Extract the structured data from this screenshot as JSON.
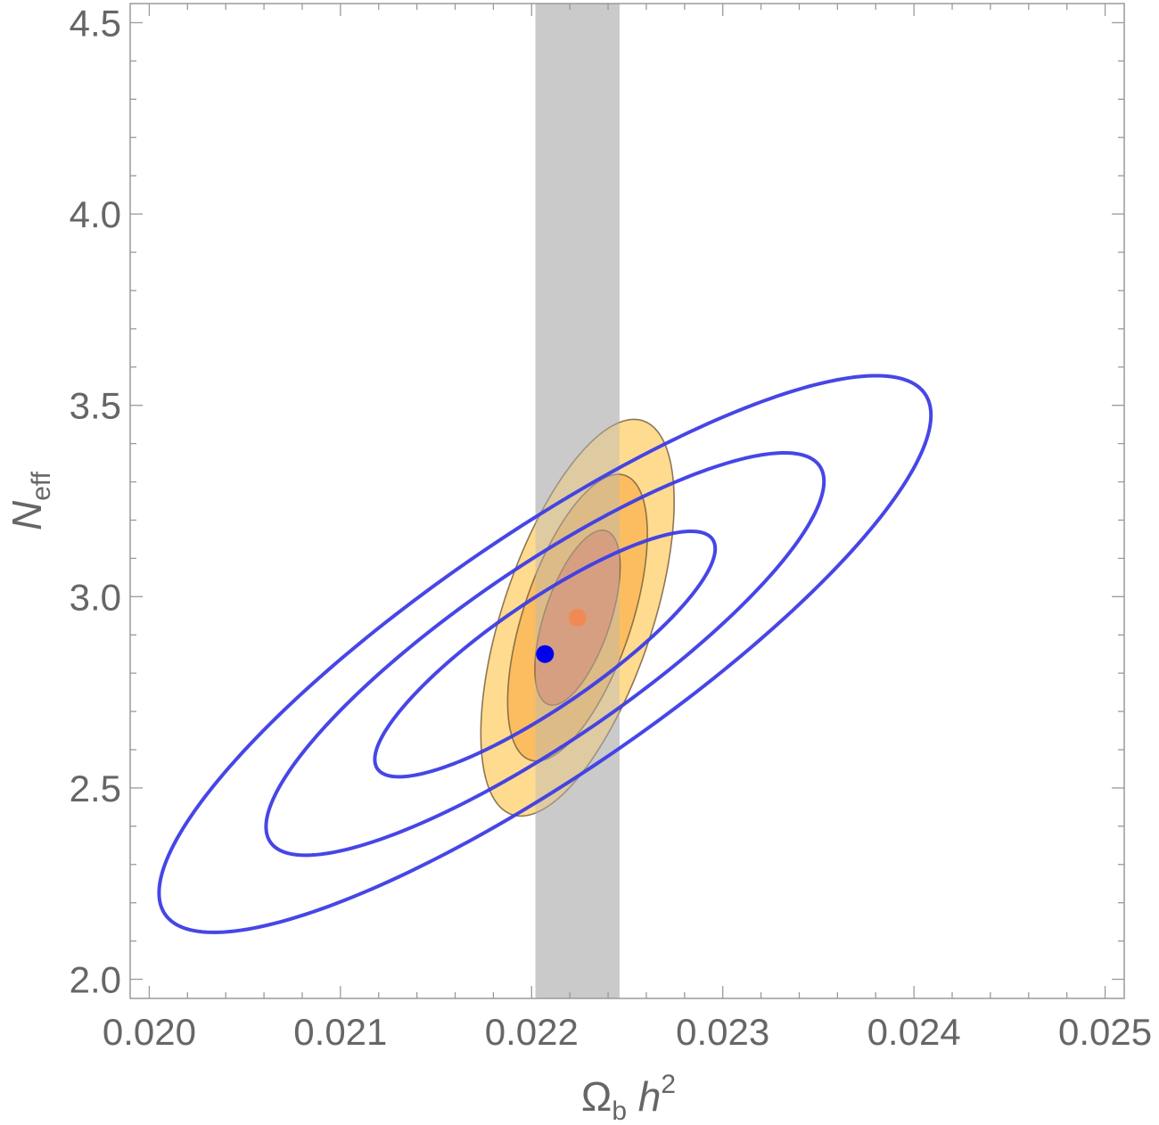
{
  "chart_data": {
    "type": "contour",
    "title": "",
    "xlabel": {
      "symbol": "Ω",
      "sub": "b",
      "var": "h",
      "sup": "2"
    },
    "ylabel": {
      "var": "N",
      "sub": "eff"
    },
    "xlim": [
      0.0199,
      0.0251
    ],
    "ylim": [
      1.95,
      4.55
    ],
    "x_ticks": [
      {
        "value": 0.02,
        "label": "0.020"
      },
      {
        "value": 0.021,
        "label": "0.021"
      },
      {
        "value": 0.022,
        "label": "0.022"
      },
      {
        "value": 0.023,
        "label": "0.023"
      },
      {
        "value": 0.024,
        "label": "0.024"
      },
      {
        "value": 0.025,
        "label": "0.025"
      }
    ],
    "y_ticks": [
      {
        "value": 2.0,
        "label": "2.0"
      },
      {
        "value": 2.5,
        "label": "2.5"
      },
      {
        "value": 3.0,
        "label": "3.0"
      },
      {
        "value": 3.5,
        "label": "3.5"
      },
      {
        "value": 4.0,
        "label": "4.0"
      },
      {
        "value": 4.5,
        "label": "4.5"
      }
    ],
    "band": {
      "x_range": [
        0.02202,
        0.02246
      ],
      "color": "#d9d9d9"
    },
    "filled_contours": {
      "center": [
        0.02224,
        2.945
      ],
      "sigma_x": 0.000147,
      "sigma_y": 0.1507,
      "rho": 0.585,
      "levels": [
        2.3,
        6.18,
        11.83
      ],
      "fill_colors": [
        "#f08a55",
        "#fbbd60",
        "#fedb8f"
      ],
      "edge_color": "#7a6040"
    },
    "line_contours": {
      "center": [
        0.02207,
        2.85
      ],
      "sigma_x": 0.000587,
      "sigma_y": 0.2115,
      "rho": 0.858,
      "levels": [
        2.3,
        6.18,
        11.83
      ],
      "color": "#3c3ce6"
    },
    "points": [
      {
        "x": 0.02224,
        "y": 2.945,
        "color": "#f08a55"
      },
      {
        "x": 0.02207,
        "y": 2.85,
        "color": "#0000ee"
      }
    ]
  }
}
